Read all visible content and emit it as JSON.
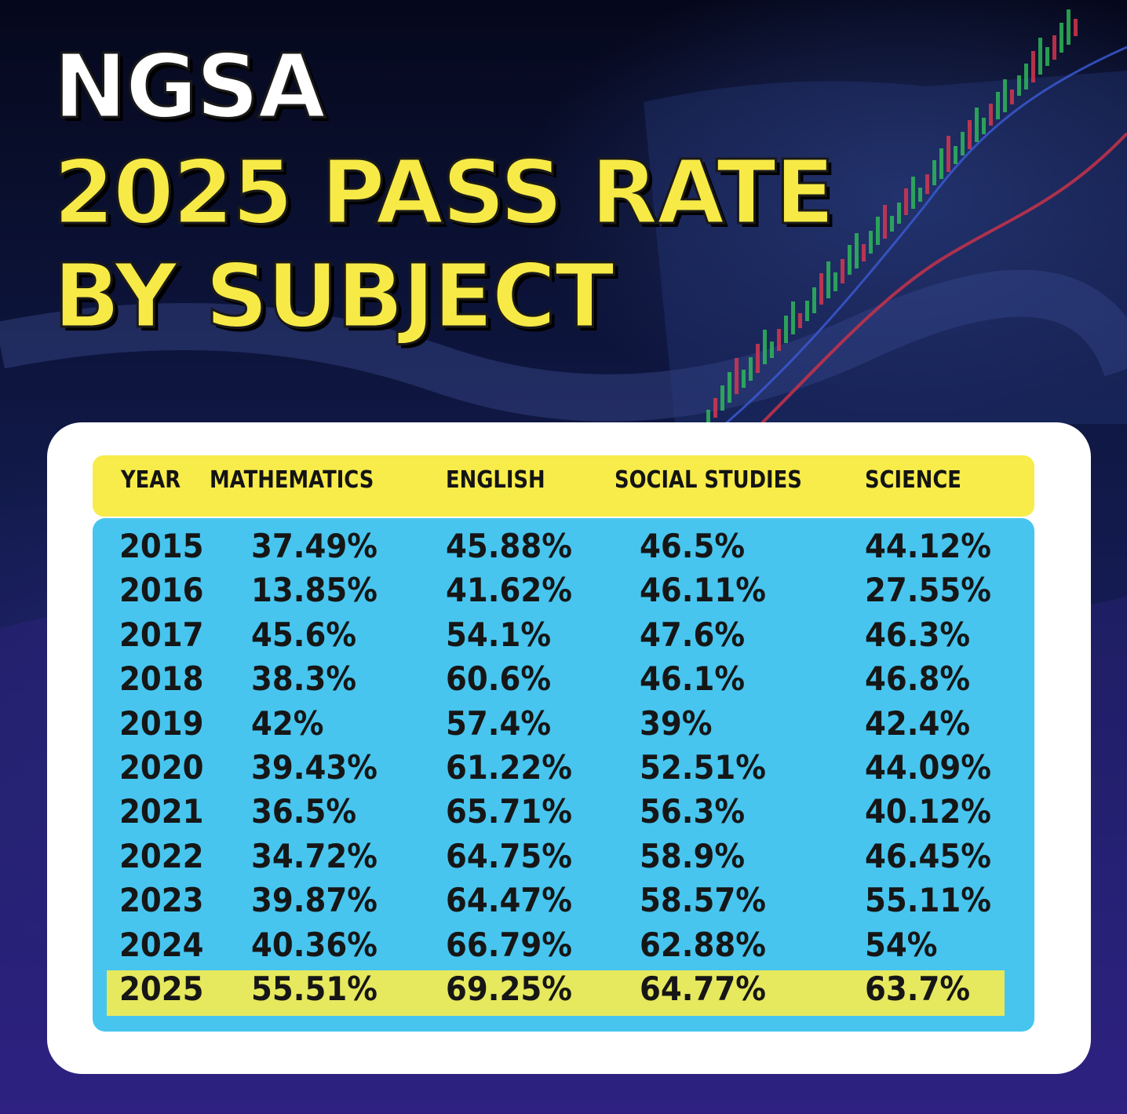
{
  "title": {
    "line1": "NGSA",
    "line2": "2025 PASS RATE",
    "line3": "BY SUBJECT"
  },
  "colors": {
    "title_yellow": "#f7ea47",
    "header_yellow": "#f7ec4a",
    "table_blue": "#47c5ef",
    "highlight_row": "#e6e85e"
  },
  "chart_data": {
    "type": "table",
    "title": "2025 PASS RATE BY SUBJECT",
    "columns": [
      "YEAR",
      "MATHEMATICS",
      "ENGLISH",
      "SOCIAL STUDIES",
      "SCIENCE"
    ],
    "rows": [
      [
        "2015",
        "37.49%",
        "45.88%",
        "46.5%",
        "44.12%"
      ],
      [
        "2016",
        "13.85%",
        "41.62%",
        "46.11%",
        "27.55%"
      ],
      [
        "2017",
        "45.6%",
        "54.1%",
        "47.6%",
        "46.3%"
      ],
      [
        "2018",
        "38.3%",
        "60.6%",
        "46.1%",
        "46.8%"
      ],
      [
        "2019",
        "42%",
        "57.4%",
        "39%",
        "42.4%"
      ],
      [
        "2020",
        "39.43%",
        "61.22%",
        "52.51%",
        "44.09%"
      ],
      [
        "2021",
        "36.5%",
        "65.71%",
        "56.3%",
        "40.12%"
      ],
      [
        "2022",
        "34.72%",
        "64.75%",
        "58.9%",
        "46.45%"
      ],
      [
        "2023",
        "39.87%",
        "64.47%",
        "58.57%",
        "55.11%"
      ],
      [
        "2024",
        "40.36%",
        "66.79%",
        "62.88%",
        "54%"
      ],
      [
        "2025",
        "55.51%",
        "69.25%",
        "64.77%",
        "63.7%"
      ]
    ],
    "highlighted_row": "2025"
  }
}
